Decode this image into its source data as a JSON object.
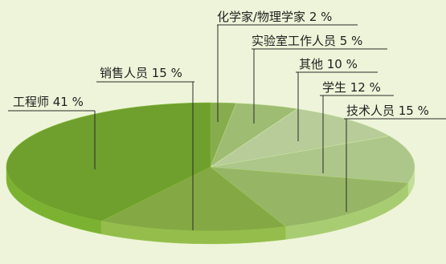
{
  "chart_data": {
    "type": "pie",
    "style": "3d",
    "order": "clockwise from top",
    "slices": [
      {
        "label": "化学家/物理学家 2 %",
        "value": 2,
        "color": "#86ac4e"
      },
      {
        "label": "实验室工作人员 5 %",
        "value": 5,
        "color": "#9fbc73"
      },
      {
        "label": "其他 10 %",
        "value": 10,
        "color": "#b7cc98"
      },
      {
        "label": "学生 12 %",
        "value": 12,
        "color": "#adc68a"
      },
      {
        "label": "技术人员 15 %",
        "value": 15,
        "color": "#96b666"
      },
      {
        "label": "销售人员 15 %",
        "value": 15,
        "color": "#84a944"
      },
      {
        "label": "工程师 41 %",
        "value": 41,
        "color": "#6f9f2d"
      }
    ]
  },
  "colors": {
    "background": "#eef4d9",
    "leader_line": "#2b2b2b",
    "label_text": "#1f1f1f"
  }
}
